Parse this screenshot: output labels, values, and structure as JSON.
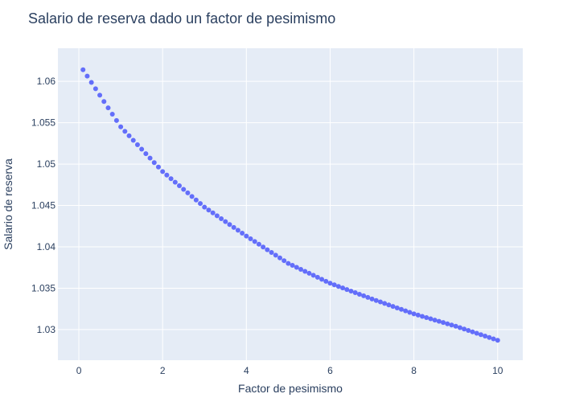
{
  "colors": {
    "plot_background": "#E5ECF6",
    "grid": "#ffffff",
    "marker": "#636EFA",
    "text": "#2a3f5f"
  },
  "chart_data": {
    "type": "scatter",
    "title": "Salario de reserva dado un factor de pesimismo",
    "xlabel": "Factor de pesimismo",
    "ylabel": "Salario de reserva",
    "xlim": [
      -0.5,
      10.6
    ],
    "ylim": [
      1.0263,
      1.064
    ],
    "x_ticks": [
      0,
      2,
      4,
      6,
      8,
      10
    ],
    "x_tick_labels": [
      "0",
      "2",
      "4",
      "6",
      "8",
      "10"
    ],
    "y_ticks": [
      1.03,
      1.035,
      1.04,
      1.045,
      1.05,
      1.055,
      1.06
    ],
    "y_tick_labels": [
      "1.03",
      "1.035",
      "1.04",
      "1.045",
      "1.05",
      "1.055",
      "1.06"
    ],
    "grid": true,
    "series": [
      {
        "x_start": 0.1,
        "x_end": 10.0,
        "x_step": 0.1,
        "anchors": [
          {
            "x": 0.1,
            "y": 1.0614
          },
          {
            "x": 1.0,
            "y": 1.0545
          },
          {
            "x": 2.0,
            "y": 1.0491
          },
          {
            "x": 3.0,
            "y": 1.0448
          },
          {
            "x": 4.0,
            "y": 1.0413
          },
          {
            "x": 5.0,
            "y": 1.038
          },
          {
            "x": 6.0,
            "y": 1.0356
          },
          {
            "x": 7.0,
            "y": 1.0337
          },
          {
            "x": 8.0,
            "y": 1.0319
          },
          {
            "x": 9.0,
            "y": 1.0304
          },
          {
            "x": 10.0,
            "y": 1.0287
          }
        ]
      }
    ]
  }
}
